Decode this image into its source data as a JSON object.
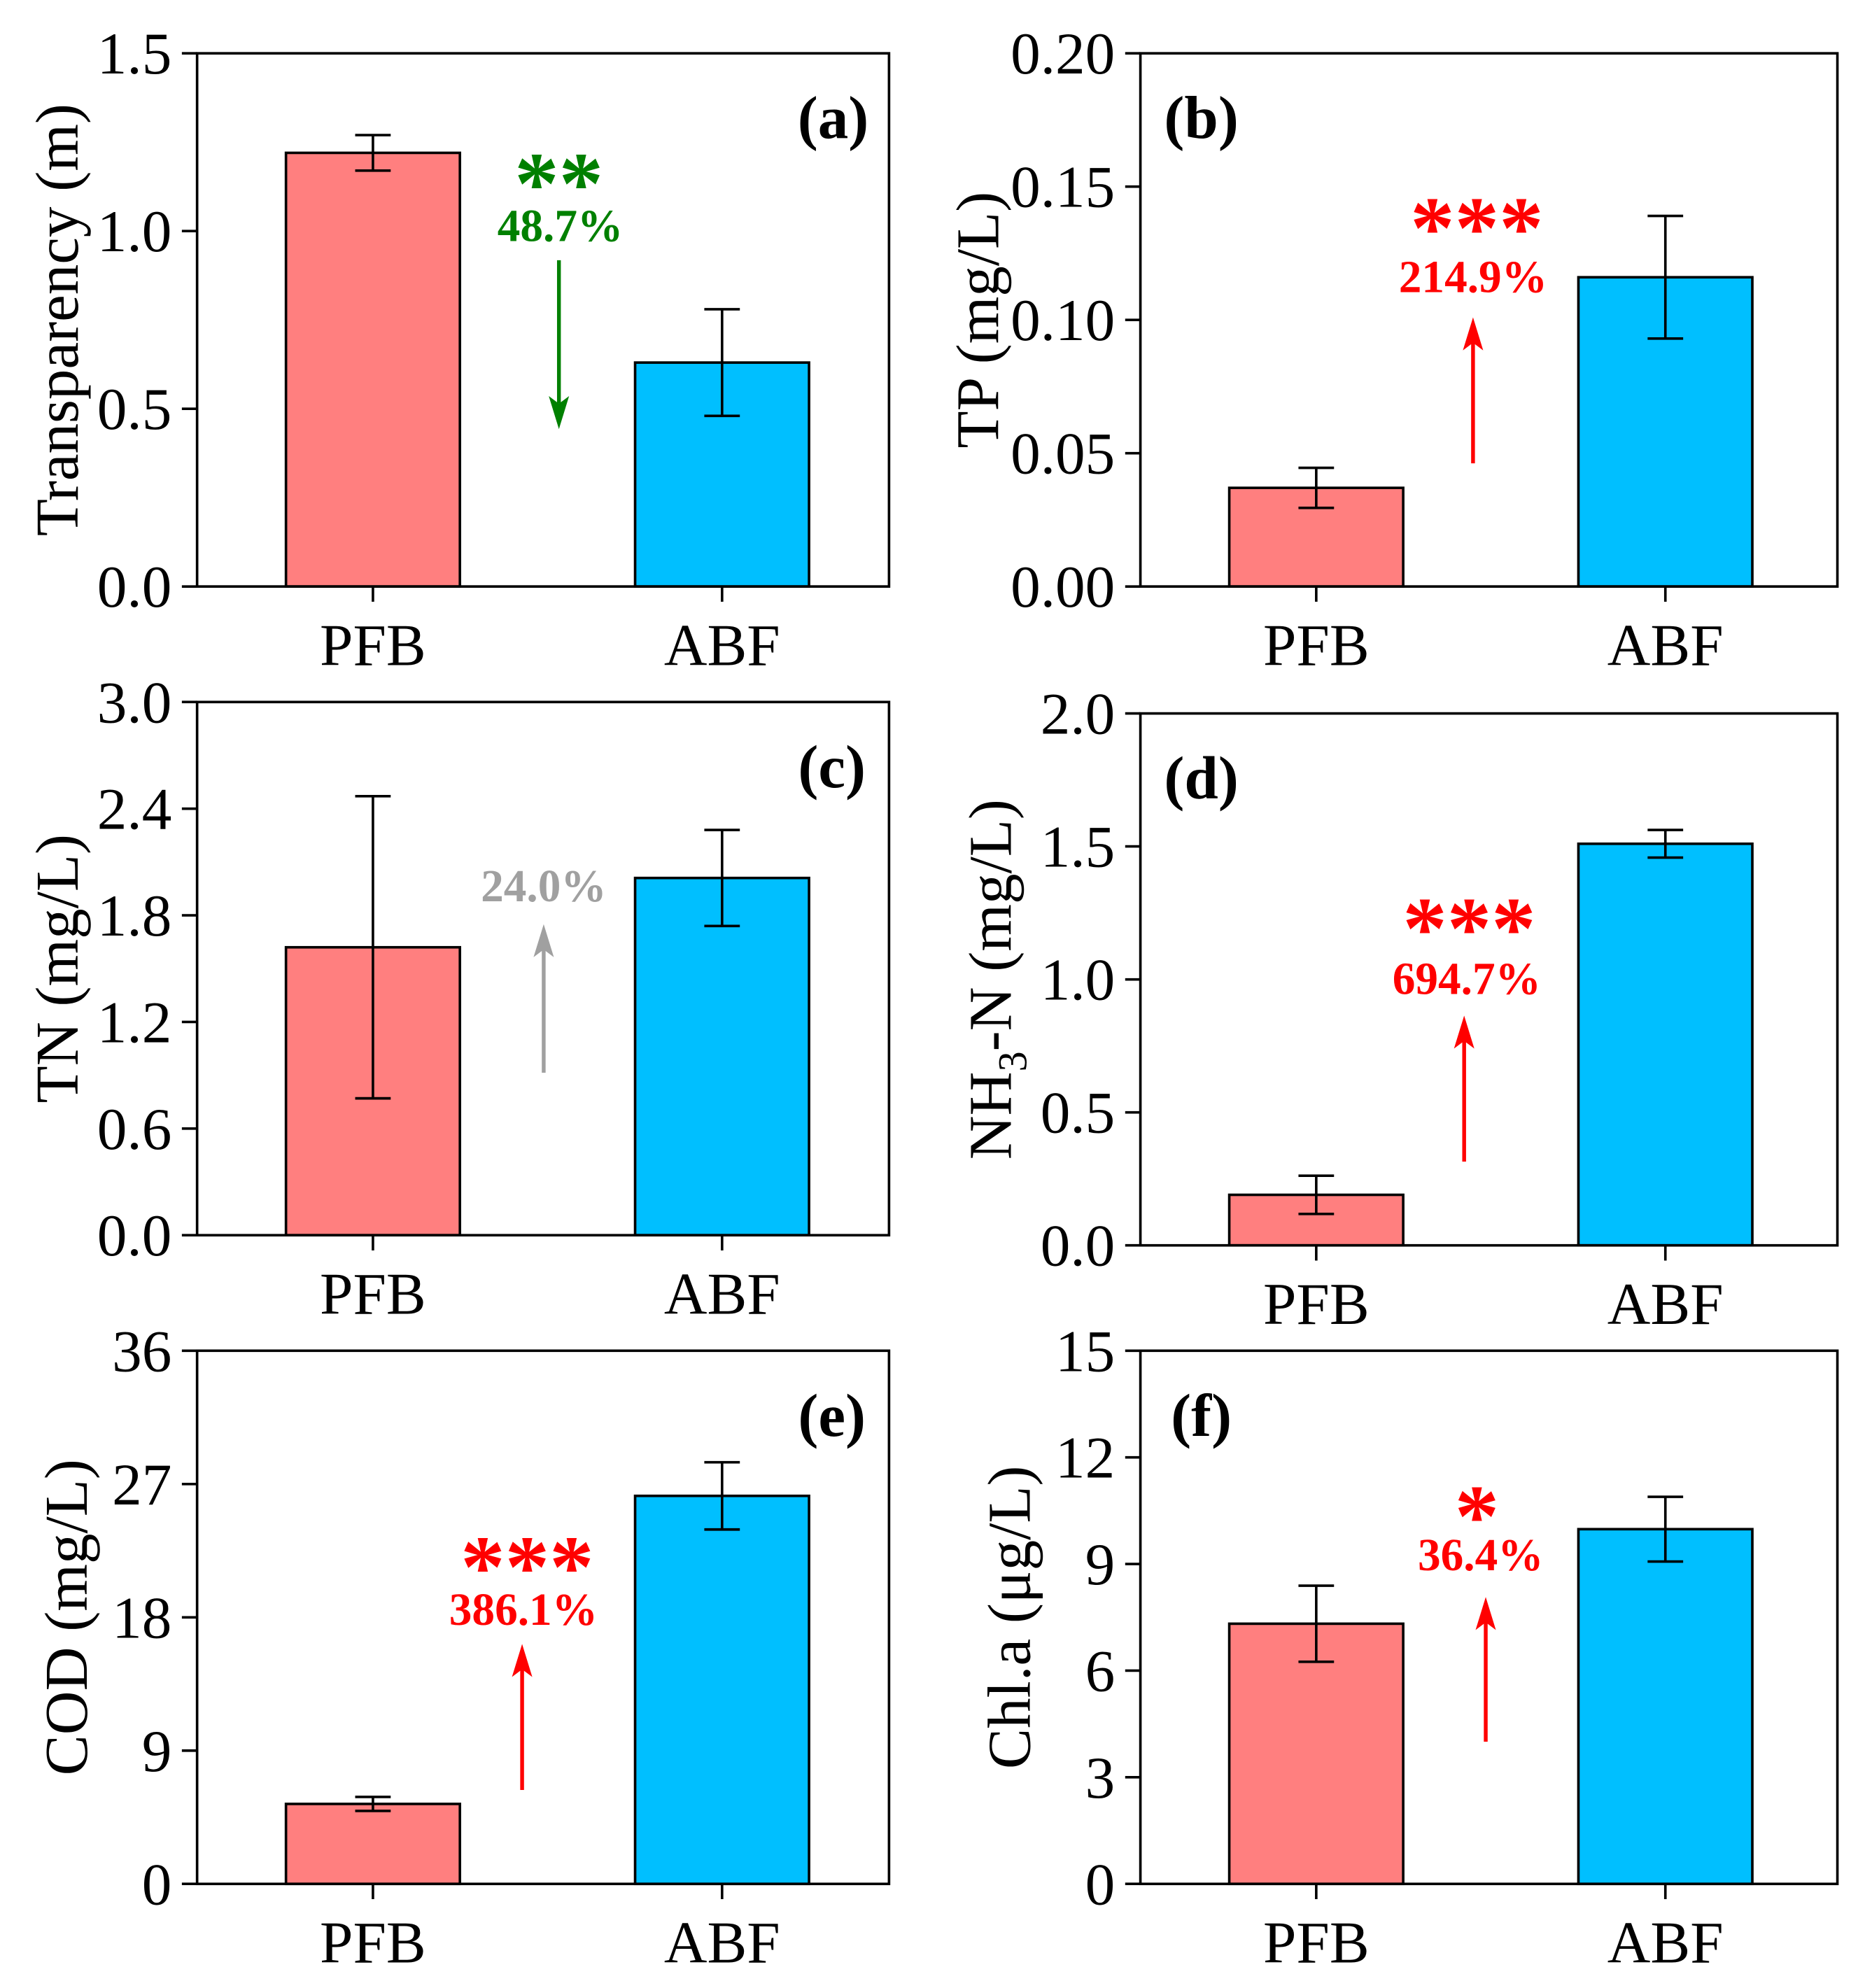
{
  "colors": {
    "PFB": "#FF7F7F",
    "ABF": "#00BFFF",
    "axis": "#000000"
  },
  "chart_data": [
    {
      "panel": "(a)",
      "type": "bar",
      "categories": [
        "PFB",
        "ABF"
      ],
      "values": [
        1.22,
        0.63
      ],
      "errors": [
        0.05,
        0.15
      ],
      "ylabel": [
        {
          "text": "Transparency (m)"
        }
      ],
      "xlabel": "",
      "ylim": [
        0,
        1.5
      ],
      "yticks": [
        0,
        0.5,
        1.0,
        1.5
      ],
      "ytick_labels": [
        "0.0",
        "0.5",
        "1.0",
        "1.5"
      ],
      "annotation": {
        "stars": "**",
        "change": "48.7%",
        "color": "#008000"
      }
    },
    {
      "panel": "(b)",
      "type": "bar",
      "categories": [
        "PFB",
        "ABF"
      ],
      "values": [
        0.037,
        0.116
      ],
      "errors": [
        0.0075,
        0.023
      ],
      "ylabel": [
        {
          "text": "TP (mg/L)"
        }
      ],
      "xlabel": "",
      "ylim": [
        0,
        0.2
      ],
      "yticks": [
        0,
        0.05,
        0.1,
        0.15,
        0.2
      ],
      "ytick_labels": [
        "0.00",
        "0.05",
        "0.10",
        "0.15",
        "0.20"
      ],
      "annotation": {
        "stars": "***",
        "change": "214.9%",
        "color": "#FF0000"
      }
    },
    {
      "panel": "(c)",
      "type": "bar",
      "categories": [
        "PFB",
        "ABF"
      ],
      "values": [
        1.62,
        2.01
      ],
      "errors": [
        0.85,
        0.27
      ],
      "ylabel": [
        {
          "text": "TN (mg/L)"
        }
      ],
      "xlabel": "",
      "ylim": [
        0,
        3.0
      ],
      "yticks": [
        0,
        0.6,
        1.2,
        1.8,
        2.4,
        3.0
      ],
      "ytick_labels": [
        "0.0",
        "0.6",
        "1.2",
        "1.8",
        "2.4",
        "3.0"
      ],
      "annotation": {
        "change": "24.0%",
        "color": "#A0A0A0"
      }
    },
    {
      "panel": "(d)",
      "type": "bar",
      "categories": [
        "PFB",
        "ABF"
      ],
      "values": [
        0.19,
        1.51
      ],
      "errors": [
        0.072,
        0.052
      ],
      "ylabel": [
        {
          "text": "NH"
        },
        {
          "text": "3",
          "sub": true
        },
        {
          "text": "-N (mg/L)"
        }
      ],
      "xlabel": "",
      "ylim": [
        0,
        2.0
      ],
      "yticks": [
        0,
        0.5,
        1.0,
        1.5,
        2.0
      ],
      "ytick_labels": [
        "0.0",
        "0.5",
        "1.0",
        "1.5",
        "2.0"
      ],
      "annotation": {
        "stars": "***",
        "change": "694.7%",
        "color": "#FF0000"
      }
    },
    {
      "panel": "(e)",
      "type": "bar",
      "categories": [
        "PFB",
        "ABF"
      ],
      "values": [
        5.4,
        26.2
      ],
      "errors": [
        0.47,
        2.27
      ],
      "ylabel": [
        {
          "text": "COD (mg/L)"
        }
      ],
      "xlabel": "",
      "ylim": [
        0,
        36
      ],
      "yticks": [
        0,
        9,
        18,
        27,
        36
      ],
      "ytick_labels": [
        "0",
        "9",
        "18",
        "27",
        "36"
      ],
      "annotation": {
        "stars": "***",
        "change": "386.1%",
        "color": "#FF0000"
      }
    },
    {
      "panel": "(f)",
      "type": "bar",
      "categories": [
        "PFB",
        "ABF"
      ],
      "values": [
        7.32,
        9.98
      ],
      "errors": [
        1.07,
        0.91
      ],
      "ylabel": [
        {
          "text": "Chl.a (μg/L)"
        }
      ],
      "xlabel": "",
      "ylim": [
        0,
        15
      ],
      "yticks": [
        0,
        3,
        6,
        9,
        12,
        15
      ],
      "ytick_labels": [
        "0",
        "3",
        "6",
        "9",
        "12",
        "15"
      ],
      "annotation": {
        "stars": "*",
        "change": "36.4%",
        "color": "#FF0000"
      }
    }
  ]
}
